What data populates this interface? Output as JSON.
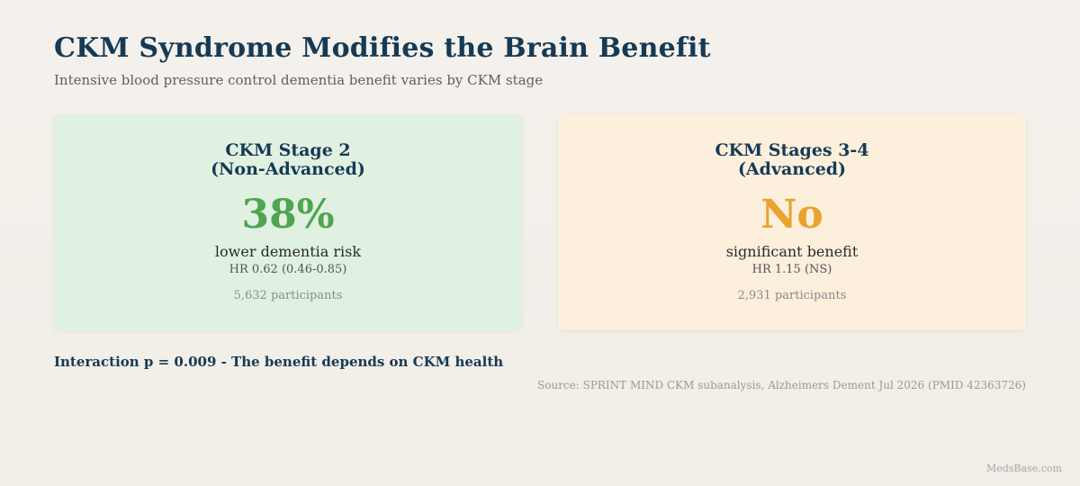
{
  "header": {
    "title": "CKM Syndrome Modifies the Brain Benefit",
    "subtitle": "Intensive blood pressure control dementia benefit varies by CKM stage"
  },
  "cards": [
    {
      "heading": "CKM Stage 2\n(Non-Advanced)",
      "stat": "38%",
      "description": "lower dementia risk",
      "hazard_ratio": "HR 0.62 (0.46-0.85)",
      "participants": "5,632 participants",
      "background_color": "#e1f1e1",
      "stat_color": "#4fa551"
    },
    {
      "heading": "CKM Stages 3-4\n(Advanced)",
      "stat": "No",
      "description": "significant benefit",
      "hazard_ratio": "HR 1.15 (NS)",
      "participants": "2,931 participants",
      "background_color": "#fcefdc",
      "stat_color": "#eaa230"
    }
  ],
  "interaction": "Interaction p = 0.009 - The benefit depends on CKM health",
  "source": "Source: SPRINT MIND CKM subanalysis, Alzheimers Dement Jul 2026 (PMID 42363726)",
  "watermark": "MedsBase.com",
  "colors": {
    "title": "#163a55",
    "background": "#f4f1ec"
  }
}
